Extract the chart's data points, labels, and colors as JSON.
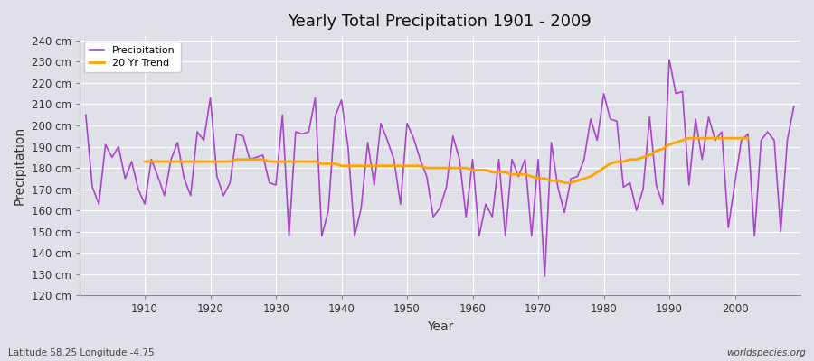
{
  "title": "Yearly Total Precipitation 1901 - 2009",
  "xlabel": "Year",
  "ylabel": "Precipitation",
  "subtitle": "Latitude 58.25 Longitude -4.75",
  "watermark": "worldspecies.org",
  "ylim": [
    120,
    242
  ],
  "precip_color": "#AA44CC",
  "trend_color": "#FFA500",
  "bg_color": "#E0E0E8",
  "plot_bg_color": "#E0E0E8",
  "grid_color": "#FFFFFF",
  "years": [
    1901,
    1902,
    1903,
    1904,
    1905,
    1906,
    1907,
    1908,
    1909,
    1910,
    1911,
    1912,
    1913,
    1914,
    1915,
    1916,
    1917,
    1918,
    1919,
    1920,
    1921,
    1922,
    1923,
    1924,
    1925,
    1926,
    1927,
    1928,
    1929,
    1930,
    1931,
    1932,
    1933,
    1934,
    1935,
    1936,
    1937,
    1938,
    1939,
    1940,
    1941,
    1942,
    1943,
    1944,
    1945,
    1946,
    1947,
    1948,
    1949,
    1950,
    1951,
    1952,
    1953,
    1954,
    1955,
    1956,
    1957,
    1958,
    1959,
    1960,
    1961,
    1962,
    1963,
    1964,
    1965,
    1966,
    1967,
    1968,
    1969,
    1970,
    1971,
    1972,
    1973,
    1974,
    1975,
    1976,
    1977,
    1978,
    1979,
    1980,
    1981,
    1982,
    1983,
    1984,
    1985,
    1986,
    1987,
    1988,
    1989,
    1990,
    1991,
    1992,
    1993,
    1994,
    1995,
    1996,
    1997,
    1998,
    1999,
    2000,
    2001,
    2002,
    2003,
    2004,
    2005,
    2006,
    2007,
    2008,
    2009
  ],
  "precip": [
    205,
    171,
    163,
    191,
    185,
    190,
    175,
    183,
    170,
    163,
    184,
    176,
    167,
    184,
    192,
    175,
    167,
    197,
    193,
    213,
    176,
    167,
    173,
    196,
    195,
    184,
    185,
    186,
    173,
    172,
    205,
    148,
    197,
    196,
    197,
    213,
    148,
    160,
    204,
    212,
    190,
    148,
    161,
    192,
    172,
    201,
    193,
    184,
    163,
    201,
    194,
    184,
    176,
    157,
    161,
    171,
    195,
    184,
    157,
    184,
    148,
    163,
    157,
    184,
    148,
    184,
    176,
    184,
    148,
    184,
    129,
    192,
    171,
    159,
    175,
    176,
    184,
    203,
    193,
    215,
    203,
    202,
    171,
    173,
    160,
    170,
    204,
    172,
    163,
    231,
    215,
    216,
    172,
    203,
    184,
    204,
    193,
    197,
    152,
    173,
    193,
    196,
    148,
    193,
    197,
    193,
    150,
    193,
    209
  ],
  "trend": [
    null,
    null,
    null,
    null,
    null,
    null,
    null,
    null,
    null,
    183,
    183,
    183,
    183,
    183,
    183,
    183,
    183,
    183,
    183,
    183,
    183,
    183,
    183,
    184,
    184,
    184,
    184,
    184,
    183,
    183,
    183,
    183,
    183,
    183,
    183,
    183,
    182,
    182,
    182,
    181,
    181,
    181,
    181,
    181,
    181,
    181,
    181,
    181,
    181,
    181,
    181,
    181,
    180,
    180,
    180,
    180,
    180,
    180,
    180,
    179,
    179,
    179,
    178,
    178,
    178,
    177,
    177,
    177,
    176,
    175,
    175,
    174,
    174,
    173,
    173,
    174,
    175,
    176,
    178,
    180,
    182,
    183,
    183,
    184,
    184,
    185,
    186,
    188,
    189,
    191,
    192,
    193,
    194,
    194,
    194,
    194,
    194,
    194,
    194,
    194,
    194,
    194,
    null,
    null,
    null,
    null,
    null,
    null,
    null
  ]
}
